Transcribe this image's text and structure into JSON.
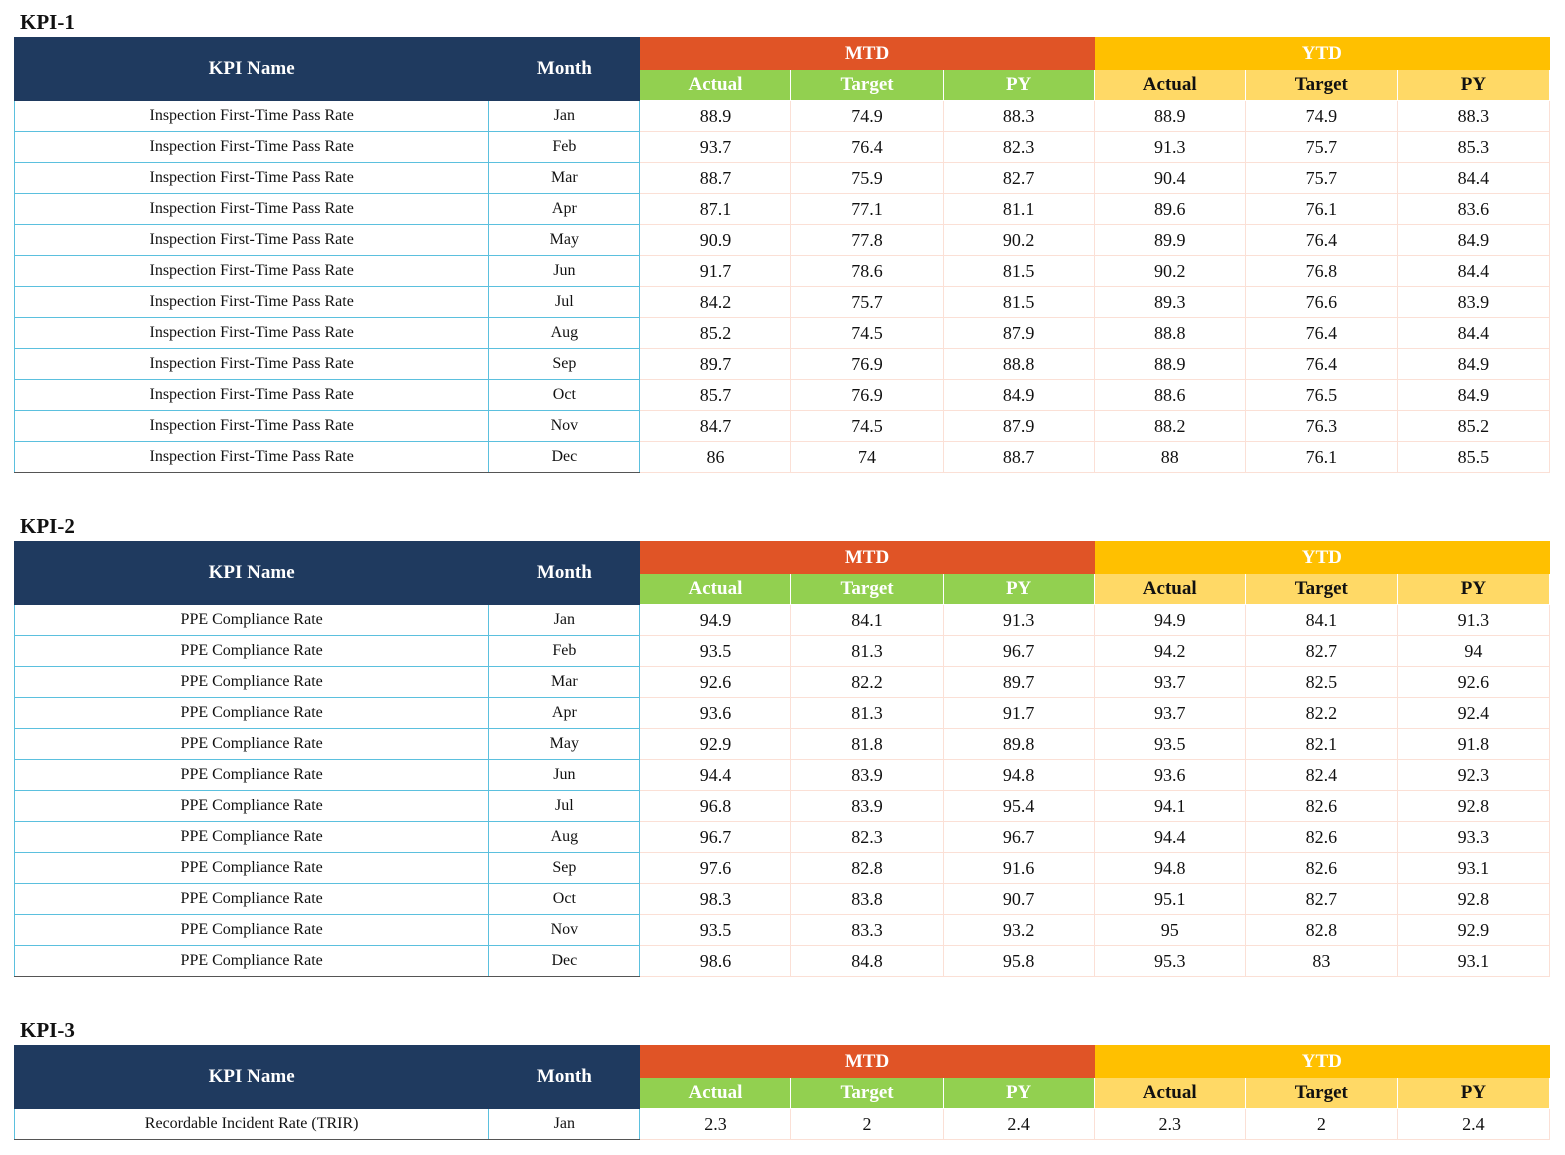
{
  "headers": {
    "kpi_name": "KPI Name",
    "month": "Month",
    "mtd": "MTD",
    "ytd": "YTD",
    "actual": "Actual",
    "target": "Target",
    "py": "PY"
  },
  "colors": {
    "header_navy": "#1f3a5f",
    "mtd_orange": "#e05426",
    "ytd_gold": "#ffc000",
    "mtd_sub_green": "#92d050",
    "ytd_sub_yellow": "#ffd966",
    "grid_blue": "#5bc0de",
    "grid_peach": "#fbe0d6"
  },
  "sections": [
    {
      "title": "KPI-1",
      "rows": [
        {
          "name": "Inspection First-Time Pass Rate",
          "month": "Jan",
          "mtd_actual": "88.9",
          "mtd_target": "74.9",
          "mtd_py": "88.3",
          "ytd_actual": "88.9",
          "ytd_target": "74.9",
          "ytd_py": "88.3"
        },
        {
          "name": "Inspection First-Time Pass Rate",
          "month": "Feb",
          "mtd_actual": "93.7",
          "mtd_target": "76.4",
          "mtd_py": "82.3",
          "ytd_actual": "91.3",
          "ytd_target": "75.7",
          "ytd_py": "85.3"
        },
        {
          "name": "Inspection First-Time Pass Rate",
          "month": "Mar",
          "mtd_actual": "88.7",
          "mtd_target": "75.9",
          "mtd_py": "82.7",
          "ytd_actual": "90.4",
          "ytd_target": "75.7",
          "ytd_py": "84.4"
        },
        {
          "name": "Inspection First-Time Pass Rate",
          "month": "Apr",
          "mtd_actual": "87.1",
          "mtd_target": "77.1",
          "mtd_py": "81.1",
          "ytd_actual": "89.6",
          "ytd_target": "76.1",
          "ytd_py": "83.6"
        },
        {
          "name": "Inspection First-Time Pass Rate",
          "month": "May",
          "mtd_actual": "90.9",
          "mtd_target": "77.8",
          "mtd_py": "90.2",
          "ytd_actual": "89.9",
          "ytd_target": "76.4",
          "ytd_py": "84.9"
        },
        {
          "name": "Inspection First-Time Pass Rate",
          "month": "Jun",
          "mtd_actual": "91.7",
          "mtd_target": "78.6",
          "mtd_py": "81.5",
          "ytd_actual": "90.2",
          "ytd_target": "76.8",
          "ytd_py": "84.4"
        },
        {
          "name": "Inspection First-Time Pass Rate",
          "month": "Jul",
          "mtd_actual": "84.2",
          "mtd_target": "75.7",
          "mtd_py": "81.5",
          "ytd_actual": "89.3",
          "ytd_target": "76.6",
          "ytd_py": "83.9"
        },
        {
          "name": "Inspection First-Time Pass Rate",
          "month": "Aug",
          "mtd_actual": "85.2",
          "mtd_target": "74.5",
          "mtd_py": "87.9",
          "ytd_actual": "88.8",
          "ytd_target": "76.4",
          "ytd_py": "84.4"
        },
        {
          "name": "Inspection First-Time Pass Rate",
          "month": "Sep",
          "mtd_actual": "89.7",
          "mtd_target": "76.9",
          "mtd_py": "88.8",
          "ytd_actual": "88.9",
          "ytd_target": "76.4",
          "ytd_py": "84.9"
        },
        {
          "name": "Inspection First-Time Pass Rate",
          "month": "Oct",
          "mtd_actual": "85.7",
          "mtd_target": "76.9",
          "mtd_py": "84.9",
          "ytd_actual": "88.6",
          "ytd_target": "76.5",
          "ytd_py": "84.9"
        },
        {
          "name": "Inspection First-Time Pass Rate",
          "month": "Nov",
          "mtd_actual": "84.7",
          "mtd_target": "74.5",
          "mtd_py": "87.9",
          "ytd_actual": "88.2",
          "ytd_target": "76.3",
          "ytd_py": "85.2"
        },
        {
          "name": "Inspection First-Time Pass Rate",
          "month": "Dec",
          "mtd_actual": "86",
          "mtd_target": "74",
          "mtd_py": "88.7",
          "ytd_actual": "88",
          "ytd_target": "76.1",
          "ytd_py": "85.5"
        }
      ]
    },
    {
      "title": "KPI-2",
      "rows": [
        {
          "name": "PPE Compliance Rate",
          "month": "Jan",
          "mtd_actual": "94.9",
          "mtd_target": "84.1",
          "mtd_py": "91.3",
          "ytd_actual": "94.9",
          "ytd_target": "84.1",
          "ytd_py": "91.3"
        },
        {
          "name": "PPE Compliance Rate",
          "month": "Feb",
          "mtd_actual": "93.5",
          "mtd_target": "81.3",
          "mtd_py": "96.7",
          "ytd_actual": "94.2",
          "ytd_target": "82.7",
          "ytd_py": "94"
        },
        {
          "name": "PPE Compliance Rate",
          "month": "Mar",
          "mtd_actual": "92.6",
          "mtd_target": "82.2",
          "mtd_py": "89.7",
          "ytd_actual": "93.7",
          "ytd_target": "82.5",
          "ytd_py": "92.6"
        },
        {
          "name": "PPE Compliance Rate",
          "month": "Apr",
          "mtd_actual": "93.6",
          "mtd_target": "81.3",
          "mtd_py": "91.7",
          "ytd_actual": "93.7",
          "ytd_target": "82.2",
          "ytd_py": "92.4"
        },
        {
          "name": "PPE Compliance Rate",
          "month": "May",
          "mtd_actual": "92.9",
          "mtd_target": "81.8",
          "mtd_py": "89.8",
          "ytd_actual": "93.5",
          "ytd_target": "82.1",
          "ytd_py": "91.8"
        },
        {
          "name": "PPE Compliance Rate",
          "month": "Jun",
          "mtd_actual": "94.4",
          "mtd_target": "83.9",
          "mtd_py": "94.8",
          "ytd_actual": "93.6",
          "ytd_target": "82.4",
          "ytd_py": "92.3"
        },
        {
          "name": "PPE Compliance Rate",
          "month": "Jul",
          "mtd_actual": "96.8",
          "mtd_target": "83.9",
          "mtd_py": "95.4",
          "ytd_actual": "94.1",
          "ytd_target": "82.6",
          "ytd_py": "92.8"
        },
        {
          "name": "PPE Compliance Rate",
          "month": "Aug",
          "mtd_actual": "96.7",
          "mtd_target": "82.3",
          "mtd_py": "96.7",
          "ytd_actual": "94.4",
          "ytd_target": "82.6",
          "ytd_py": "93.3"
        },
        {
          "name": "PPE Compliance Rate",
          "month": "Sep",
          "mtd_actual": "97.6",
          "mtd_target": "82.8",
          "mtd_py": "91.6",
          "ytd_actual": "94.8",
          "ytd_target": "82.6",
          "ytd_py": "93.1"
        },
        {
          "name": "PPE Compliance Rate",
          "month": "Oct",
          "mtd_actual": "98.3",
          "mtd_target": "83.8",
          "mtd_py": "90.7",
          "ytd_actual": "95.1",
          "ytd_target": "82.7",
          "ytd_py": "92.8"
        },
        {
          "name": "PPE Compliance Rate",
          "month": "Nov",
          "mtd_actual": "93.5",
          "mtd_target": "83.3",
          "mtd_py": "93.2",
          "ytd_actual": "95",
          "ytd_target": "82.8",
          "ytd_py": "92.9"
        },
        {
          "name": "PPE Compliance Rate",
          "month": "Dec",
          "mtd_actual": "98.6",
          "mtd_target": "84.8",
          "mtd_py": "95.8",
          "ytd_actual": "95.3",
          "ytd_target": "83",
          "ytd_py": "93.1"
        }
      ]
    },
    {
      "title": "KPI-3",
      "rows": [
        {
          "name": "Recordable Incident Rate (TRIR)",
          "month": "Jan",
          "mtd_actual": "2.3",
          "mtd_target": "2",
          "mtd_py": "2.4",
          "ytd_actual": "2.3",
          "ytd_target": "2",
          "ytd_py": "2.4"
        }
      ]
    }
  ]
}
